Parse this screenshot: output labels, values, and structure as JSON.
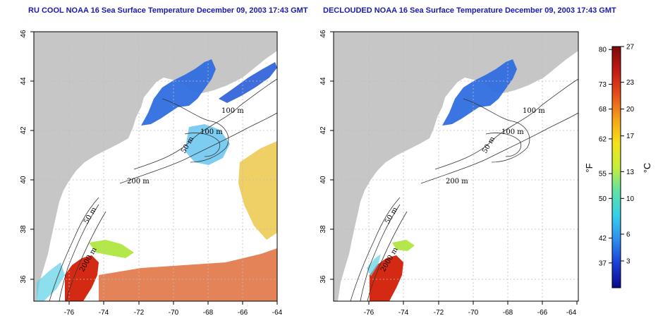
{
  "panels": [
    {
      "id": "left",
      "title": "RU COOL NOAA 16 Sea Surface Temperature December 09, 2003 17:43 GMT",
      "x_ticks": [
        "-76",
        "-74",
        "-72",
        "-70",
        "-68",
        "-66",
        "-64"
      ],
      "y_ticks": [
        "36",
        "38",
        "40",
        "42",
        "44",
        "46"
      ],
      "contour_labels": [
        "100 m",
        "100 m",
        "50 m",
        "200 m",
        "50 m",
        "2000 m"
      ]
    },
    {
      "id": "right",
      "title": "DECLOUDED NOAA 16 Sea Surface Temperature December 09, 2003 17:43 GMT",
      "x_ticks": [
        "-76",
        "-74",
        "-72",
        "-70",
        "-68",
        "-66",
        "-64"
      ],
      "y_ticks": [
        "36",
        "38",
        "40",
        "42",
        "44",
        "46"
      ],
      "contour_labels": [
        "100 m",
        "100 m",
        "50 m",
        "200 m",
        "50 m",
        "2000 m"
      ]
    }
  ],
  "colorbar": {
    "fahrenheit_ticks": [
      "80",
      "73",
      "68",
      "62",
      "55",
      "50",
      "42",
      "37"
    ],
    "celsius_ticks": [
      "27",
      "23",
      "20",
      "17",
      "13",
      "10",
      "6",
      "3"
    ],
    "fahrenheit_label": "°F",
    "celsius_label": "°C",
    "celsius_range": [
      0,
      27
    ],
    "colors": [
      "#0a0a8c",
      "#1a3fd6",
      "#2f8ef0",
      "#35d0ea",
      "#5fe2a5",
      "#c6ef3a",
      "#f5e21a",
      "#f5a21a",
      "#e5501a",
      "#c41a12",
      "#7a0a0a"
    ]
  },
  "colors": {
    "land": "#c6c6c6",
    "sea": "#ffffff",
    "title": "#1a1aa8"
  }
}
